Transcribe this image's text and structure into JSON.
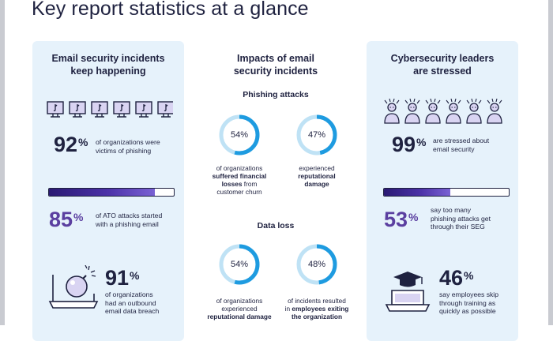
{
  "page_title": "Key report statistics at a glance",
  "left": {
    "title_lines": [
      "Email security incidents",
      "keep happening"
    ],
    "stat1": {
      "value": "92",
      "unit": "%",
      "text_lines": [
        "of organizations were",
        "victims of phishing"
      ]
    },
    "progress": 0.85,
    "stat2": {
      "value": "85",
      "unit": "%",
      "text_lines": [
        "of ATO attacks started",
        "with a phishing email"
      ]
    },
    "stat3": {
      "value": "91",
      "unit": "%",
      "text_lines": [
        "of organizations",
        "had an outbound",
        "email data breach"
      ]
    },
    "icons": [
      "monitor-phishing-icon",
      "laptop-bomb-icon"
    ]
  },
  "middle": {
    "title_lines": [
      "Impacts of email",
      "security incidents"
    ],
    "phishing": {
      "heading": "Phishing attacks",
      "donut1": {
        "label": "54%",
        "value": 0.54,
        "lines": [
          {
            "text": "of organizations",
            "bold": false
          },
          {
            "text": "suffered financial",
            "bold": true
          },
          {
            "text": "losses",
            "bold": true,
            "rest": " from"
          },
          {
            "text": "customer churn",
            "bold": false
          }
        ]
      },
      "donut2": {
        "label": "47%",
        "value": 0.47,
        "lines": [
          {
            "text": "experienced",
            "bold": false
          },
          {
            "text": "reputational",
            "bold": true
          },
          {
            "text": "damage",
            "bold": true
          }
        ]
      }
    },
    "dataloss": {
      "heading": "Data loss",
      "donut1": {
        "label": "54%",
        "value": 0.54,
        "lines": [
          {
            "text": "of organizations",
            "bold": false
          },
          {
            "text": "experienced",
            "bold": false
          },
          {
            "text": "reputational damage",
            "bold": true
          }
        ]
      },
      "donut2": {
        "label": "48%",
        "value": 0.48,
        "lines": [
          {
            "text": "of incidents resulted",
            "bold": false
          },
          {
            "text": "in ",
            "bold": false,
            "boldrest": "employees exiting"
          },
          {
            "text": "the organization",
            "bold": true
          }
        ]
      }
    }
  },
  "right": {
    "title_lines": [
      "Cybersecurity leaders",
      "are stressed"
    ],
    "stat1": {
      "value": "99",
      "unit": "%",
      "text_lines": [
        "are stressed about",
        "email security"
      ]
    },
    "progress": 0.53,
    "stat2": {
      "value": "53",
      "unit": "%",
      "text_lines": [
        "say too many",
        "phishing attacks get",
        "through their SEG"
      ]
    },
    "stat3": {
      "value": "46",
      "unit": "%",
      "text_lines": [
        "say employees skip",
        "through training as",
        "quickly as possible"
      ]
    },
    "icons": [
      "stressed-person-icon",
      "laptop-graduation-icon"
    ]
  },
  "colors": {
    "navy": "#1f2240",
    "purple": "#5b3fa0",
    "panel": "#e6f2fb",
    "ring": "#1e9be0",
    "ring_light": "#bfe2f5"
  }
}
